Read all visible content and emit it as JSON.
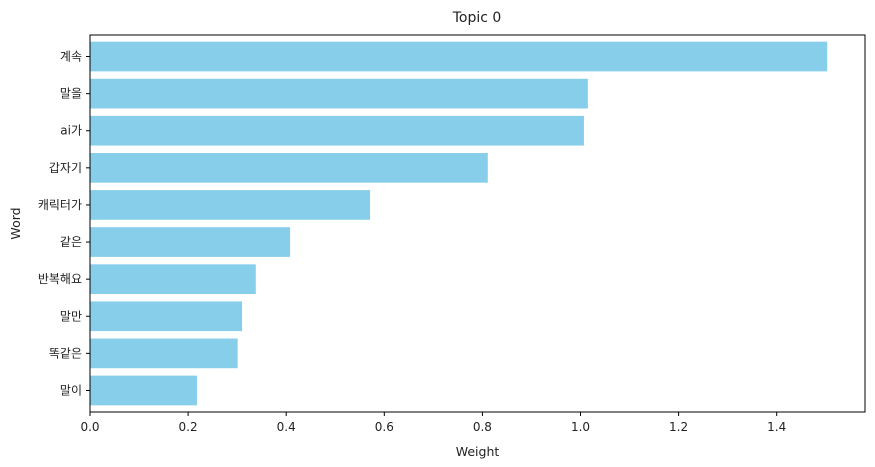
{
  "chart_data": {
    "type": "bar",
    "orientation": "horizontal",
    "title": "Topic 0",
    "xlabel": "Weight",
    "ylabel": "Word",
    "categories": [
      "계속",
      "말을",
      "ai가",
      "갑자기",
      "캐릭터가",
      "같은",
      "반복해요",
      "말만",
      "똑같은",
      "말이"
    ],
    "values": [
      1.503,
      1.015,
      1.007,
      0.811,
      0.571,
      0.408,
      0.338,
      0.31,
      0.301,
      0.218
    ],
    "xlim": [
      0,
      1.58
    ],
    "xticks": [
      "0.0",
      "0.2",
      "0.4",
      "0.6",
      "0.8",
      "1.0",
      "1.2",
      "1.4"
    ],
    "grid": false,
    "bar_color": "#87ceeb"
  }
}
